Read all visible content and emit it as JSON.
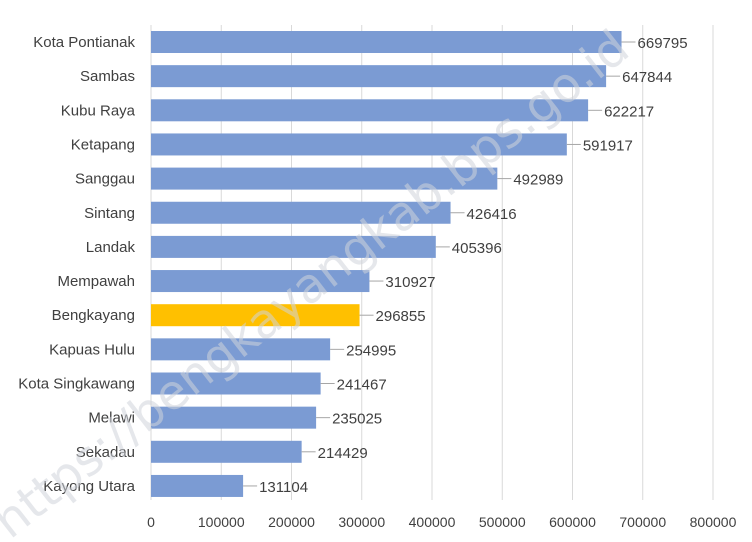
{
  "chart_data": {
    "type": "bar",
    "orientation": "horizontal",
    "categories": [
      "Kota Pontianak",
      "Sambas",
      "Kubu Raya",
      "Ketapang",
      "Sanggau",
      "Sintang",
      "Landak",
      "Mempawah",
      "Bengkayang",
      "Kapuas Hulu",
      "Kota Singkawang",
      "Melawi",
      "Sekadau",
      "Kayong Utara"
    ],
    "values": [
      669795,
      647844,
      622217,
      591917,
      492989,
      426416,
      405396,
      310927,
      296855,
      254995,
      241467,
      235025,
      214429,
      131104
    ],
    "highlight": "Bengkayang",
    "xlim": [
      0,
      800000
    ],
    "xticks": [
      "0",
      "100000",
      "200000",
      "300000",
      "400000",
      "500000",
      "600000",
      "700000",
      "800000"
    ],
    "grid": true,
    "colors": {
      "bar": "#7b9bd3",
      "highlight": "#ffc000"
    }
  },
  "watermark": {
    "text": "https://bengkayangkab.bps.go.id"
  }
}
